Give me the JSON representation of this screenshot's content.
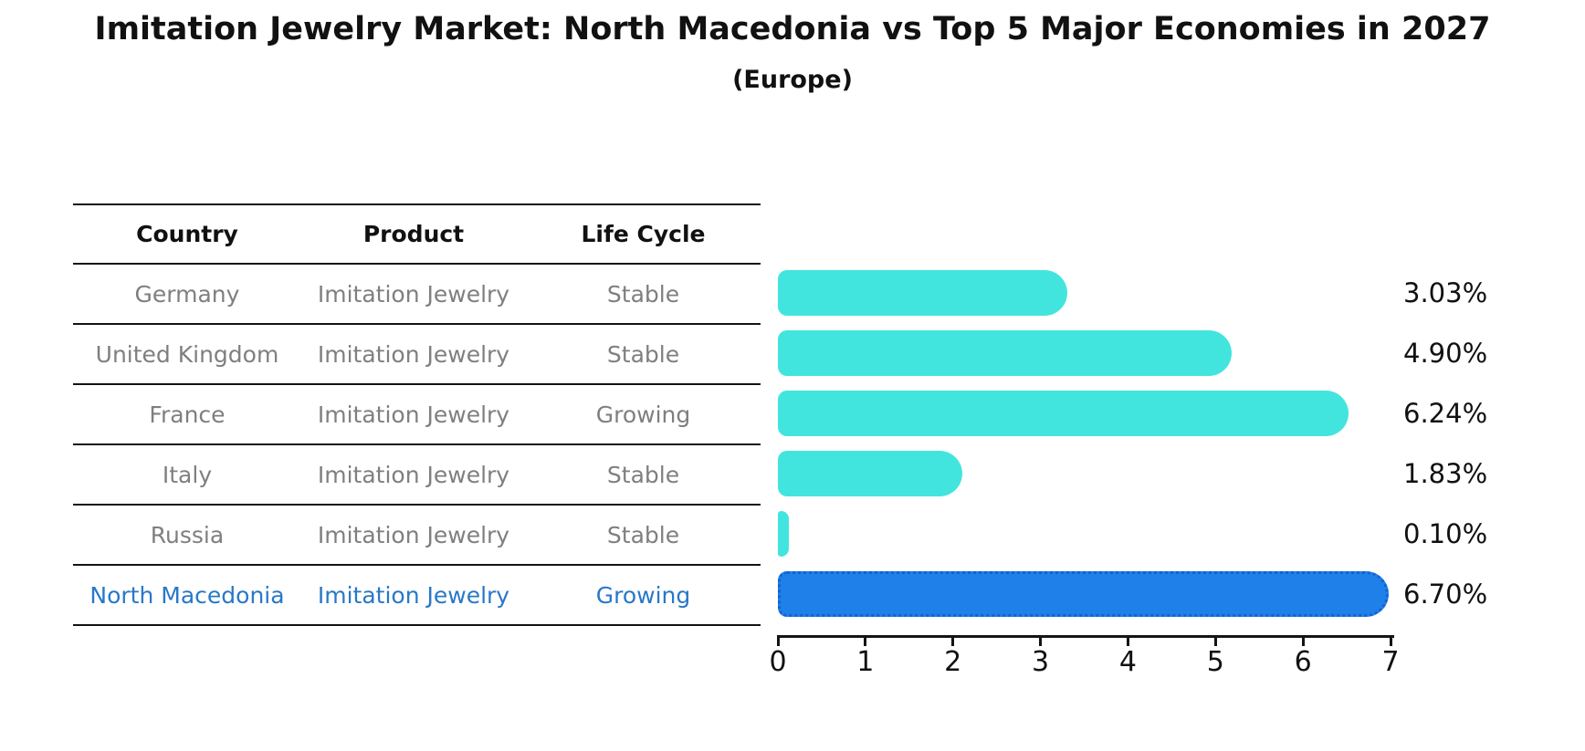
{
  "title": "Imitation Jewelry Market: North Macedonia vs Top 5 Major Economies in 2027",
  "subtitle": "(Europe)",
  "table": {
    "headers": [
      "Country",
      "Product",
      "Life Cycle"
    ],
    "rows": [
      {
        "country": "Germany",
        "product": "Imitation Jewelry",
        "life_cycle": "Stable",
        "highlight": false
      },
      {
        "country": "United Kingdom",
        "product": "Imitation Jewelry",
        "life_cycle": "Stable",
        "highlight": false
      },
      {
        "country": "France",
        "product": "Imitation Jewelry",
        "life_cycle": "Growing",
        "highlight": false
      },
      {
        "country": "Italy",
        "product": "Imitation Jewelry",
        "life_cycle": "Stable",
        "highlight": false
      },
      {
        "country": "Russia",
        "product": "Imitation Jewelry",
        "life_cycle": "Stable",
        "highlight": false
      },
      {
        "country": "North Macedonia",
        "product": "Imitation Jewelry",
        "life_cycle": "Growing",
        "highlight": true
      }
    ]
  },
  "chart_data": {
    "type": "bar",
    "orientation": "horizontal",
    "title": "Imitation Jewelry Market: North Macedonia vs Top 5 Major Economies in 2027 (Europe)",
    "categories": [
      "Germany",
      "United Kingdom",
      "France",
      "Italy",
      "Russia",
      "North Macedonia"
    ],
    "values": [
      3.03,
      4.9,
      6.24,
      1.83,
      0.1,
      6.7
    ],
    "value_labels": [
      "3.03%",
      "4.90%",
      "6.24%",
      "1.83%",
      "0.10%",
      "6.70%"
    ],
    "xlabel": "",
    "ylabel": "",
    "xlim": [
      0,
      7
    ],
    "x_ticks": [
      0,
      1,
      2,
      3,
      4,
      5,
      6,
      7
    ],
    "grid": false,
    "legend": "none",
    "highlight_index": 5,
    "colors": {
      "bar": "#42e5de",
      "highlight_bar": "#1e80e8",
      "highlight_border": "#1262d4"
    }
  },
  "colors": {
    "table_text": "#7f7f7f",
    "highlight_text": "#2878c8",
    "heading_text": "#111111",
    "axis": "#141414"
  }
}
